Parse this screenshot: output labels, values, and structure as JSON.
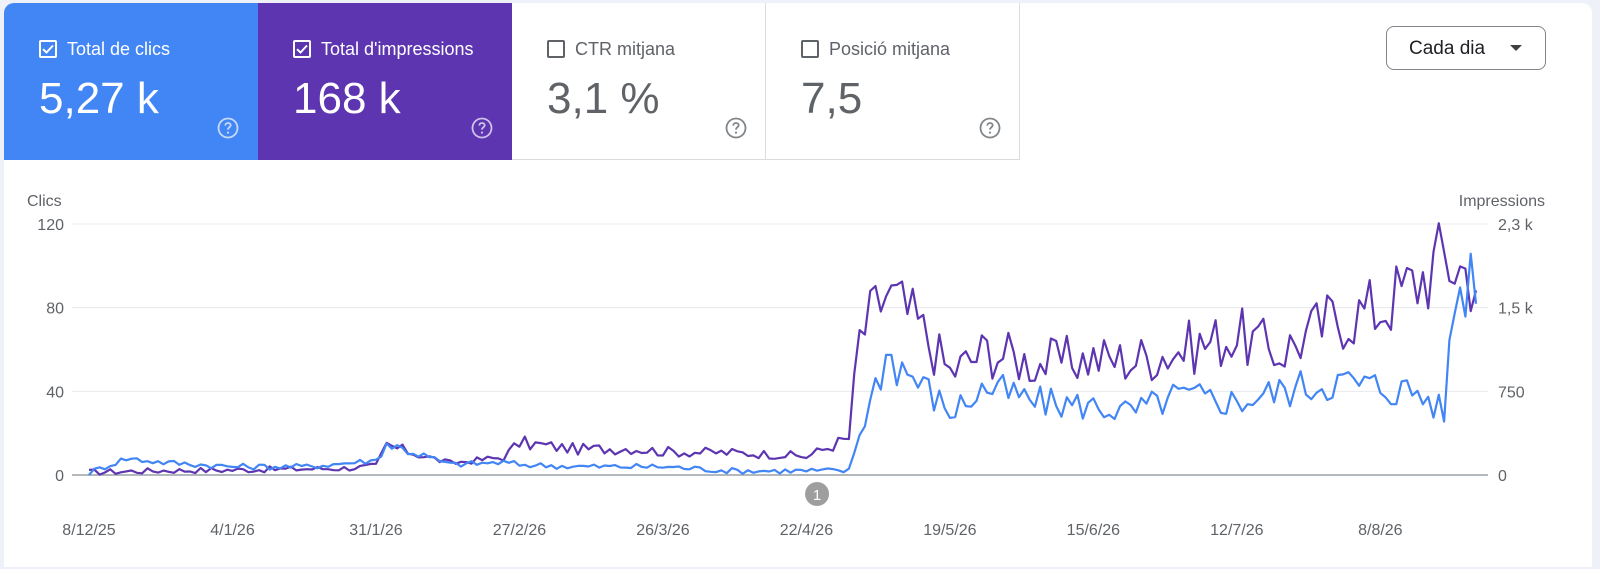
{
  "cards": [
    {
      "label": "Total de clics",
      "value": "5,27 k",
      "checked": true,
      "color": "#4285f4"
    },
    {
      "label": "Total d'impressions",
      "value": "168 k",
      "checked": true,
      "color": "#5e35b1"
    },
    {
      "label": "CTR mitjana",
      "value": "3,1 %",
      "checked": false,
      "color": "#ffffff"
    },
    {
      "label": "Posició mitjana",
      "value": "7,5",
      "checked": false,
      "color": "#ffffff"
    }
  ],
  "granularity": {
    "selected": "Cada dia"
  },
  "colors": {
    "clicks": "#4285f4",
    "impressions": "#5e35b1",
    "grid": "#e8eaed",
    "annotation": "#9e9e9e"
  },
  "chart_data": {
    "type": "line",
    "xlabel": "",
    "x_tick_labels": [
      "8/12/25",
      "4/1/26",
      "31/1/26",
      "27/2/26",
      "26/3/26",
      "22/4/26",
      "19/5/26",
      "15/6/26",
      "12/7/26",
      "8/8/26"
    ],
    "x_range": [
      "8/12/25",
      "26/8/26"
    ],
    "grid": true,
    "legend": "none",
    "y_left": {
      "label": "Clics",
      "range": [
        0,
        120
      ],
      "ticks": [
        0,
        40,
        80,
        120
      ],
      "tick_labels": [
        "0",
        "40",
        "80",
        "120"
      ]
    },
    "y_right": {
      "label": "Impressions",
      "range": [
        0,
        2250
      ],
      "ticks": [
        0,
        750,
        1500,
        2250
      ],
      "tick_labels": [
        "0",
        "750",
        "1,5 k",
        "2,3 k"
      ]
    },
    "annotations": [
      {
        "label": "1",
        "x": "24/4/26"
      }
    ],
    "series": [
      {
        "axis": "right",
        "color": "#5e35b1",
        "values_weekly_sampled": true,
        "anchors": [
          {
            "x": "8/12/25",
            "y": 25
          },
          {
            "x": "22/12/25",
            "y": 40
          },
          {
            "x": "4/1/26",
            "y": 45
          },
          {
            "x": "18/1/26",
            "y": 55
          },
          {
            "x": "25/1/26",
            "y": 60
          },
          {
            "x": "31/1/26",
            "y": 80
          },
          {
            "x": "2/2/26",
            "y": 265
          },
          {
            "x": "14/2/26",
            "y": 105
          },
          {
            "x": "24/2/26",
            "y": 160
          },
          {
            "x": "27/2/26",
            "y": 290
          },
          {
            "x": "10/3/26",
            "y": 230
          },
          {
            "x": "20/3/26",
            "y": 240
          },
          {
            "x": "26/3/26",
            "y": 210
          },
          {
            "x": "8/4/26",
            "y": 200
          },
          {
            "x": "18/4/26",
            "y": 180
          },
          {
            "x": "22/4/26",
            "y": 165
          },
          {
            "x": "30/4/26",
            "y": 330
          },
          {
            "x": "2/5/26",
            "y": 1230
          },
          {
            "x": "7/5/26",
            "y": 1640
          },
          {
            "x": "13/5/26",
            "y": 1350
          },
          {
            "x": "19/5/26",
            "y": 920
          },
          {
            "x": "26/5/26",
            "y": 1120
          },
          {
            "x": "4/6/26",
            "y": 1000
          },
          {
            "x": "15/6/26",
            "y": 1050
          },
          {
            "x": "22/6/26",
            "y": 1030
          },
          {
            "x": "1/7/26",
            "y": 1120
          },
          {
            "x": "12/7/26",
            "y": 1250
          },
          {
            "x": "20/7/26",
            "y": 1100
          },
          {
            "x": "30/7/26",
            "y": 1400
          },
          {
            "x": "8/8/26",
            "y": 1500
          },
          {
            "x": "15/8/26",
            "y": 1750
          },
          {
            "x": "20/8/26",
            "y": 1950
          },
          {
            "x": "26/8/26",
            "y": 1780
          }
        ]
      },
      {
        "axis": "left",
        "color": "#4285f4",
        "values_weekly_sampled": true,
        "anchors": [
          {
            "x": "8/12/25",
            "y": 1
          },
          {
            "x": "15/12/25",
            "y": 8
          },
          {
            "x": "22/12/25",
            "y": 6
          },
          {
            "x": "4/1/26",
            "y": 4
          },
          {
            "x": "18/1/26",
            "y": 4
          },
          {
            "x": "31/1/26",
            "y": 7
          },
          {
            "x": "2/2/26",
            "y": 15
          },
          {
            "x": "14/2/26",
            "y": 5
          },
          {
            "x": "24/2/26",
            "y": 6
          },
          {
            "x": "27/2/26",
            "y": 5
          },
          {
            "x": "10/3/26",
            "y": 4
          },
          {
            "x": "26/3/26",
            "y": 4
          },
          {
            "x": "8/4/26",
            "y": 2
          },
          {
            "x": "22/4/26",
            "y": 2
          },
          {
            "x": "30/4/26",
            "y": 2
          },
          {
            "x": "2/5/26",
            "y": 20
          },
          {
            "x": "7/5/26",
            "y": 58
          },
          {
            "x": "13/5/26",
            "y": 45
          },
          {
            "x": "19/5/26",
            "y": 30
          },
          {
            "x": "26/5/26",
            "y": 42
          },
          {
            "x": "4/6/26",
            "y": 35
          },
          {
            "x": "15/6/26",
            "y": 33
          },
          {
            "x": "22/6/26",
            "y": 30
          },
          {
            "x": "1/7/26",
            "y": 38
          },
          {
            "x": "12/7/26",
            "y": 35
          },
          {
            "x": "20/7/26",
            "y": 40
          },
          {
            "x": "30/7/26",
            "y": 45
          },
          {
            "x": "8/8/26",
            "y": 42
          },
          {
            "x": "15/8/26",
            "y": 40
          },
          {
            "x": "20/8/26",
            "y": 30
          },
          {
            "x": "22/8/26",
            "y": 85
          },
          {
            "x": "26/8/26",
            "y": 102
          }
        ]
      }
    ]
  }
}
